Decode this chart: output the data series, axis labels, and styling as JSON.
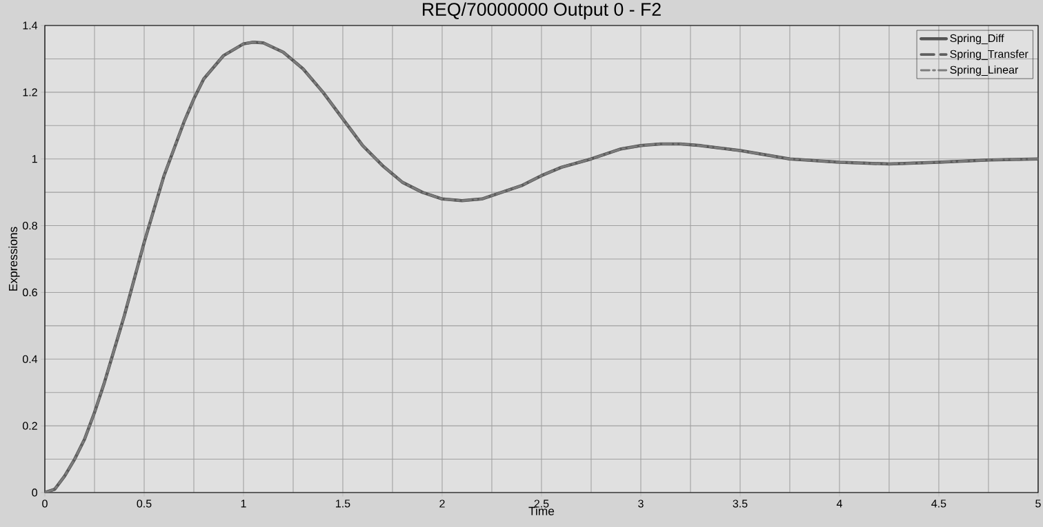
{
  "chart_data": {
    "type": "line",
    "title": "REQ/70000000 Output 0 - F2",
    "xlabel": "Time",
    "ylabel": "Expressions",
    "x": [
      0,
      0.05,
      0.1,
      0.15,
      0.2,
      0.25,
      0.3,
      0.4,
      0.5,
      0.6,
      0.7,
      0.75,
      0.8,
      0.9,
      1.0,
      1.05,
      1.1,
      1.2,
      1.3,
      1.4,
      1.5,
      1.6,
      1.7,
      1.8,
      1.9,
      2.0,
      2.1,
      2.2,
      2.3,
      2.4,
      2.5,
      2.6,
      2.75,
      2.9,
      3.0,
      3.1,
      3.2,
      3.3,
      3.5,
      3.75,
      4.0,
      4.25,
      4.5,
      4.75,
      5.0
    ],
    "series": [
      {
        "name": "Spring_Diff",
        "color": "#555555",
        "line_style": "solid",
        "values": [
          0,
          0.01,
          0.05,
          0.1,
          0.16,
          0.24,
          0.33,
          0.53,
          0.75,
          0.95,
          1.11,
          1.18,
          1.24,
          1.31,
          1.345,
          1.35,
          1.348,
          1.32,
          1.27,
          1.2,
          1.12,
          1.04,
          0.98,
          0.93,
          0.9,
          0.88,
          0.875,
          0.88,
          0.9,
          0.92,
          0.95,
          0.975,
          1.0,
          1.03,
          1.04,
          1.045,
          1.045,
          1.04,
          1.025,
          1.0,
          0.99,
          0.985,
          0.99,
          0.997,
          1.0
        ]
      },
      {
        "name": "Spring_Transfer",
        "color": "#5e5e5e",
        "line_style": "dashed",
        "values": [
          0,
          0.01,
          0.05,
          0.1,
          0.16,
          0.24,
          0.33,
          0.53,
          0.75,
          0.95,
          1.11,
          1.18,
          1.24,
          1.31,
          1.345,
          1.35,
          1.348,
          1.32,
          1.27,
          1.2,
          1.12,
          1.04,
          0.98,
          0.93,
          0.9,
          0.88,
          0.875,
          0.88,
          0.9,
          0.92,
          0.95,
          0.975,
          1.0,
          1.03,
          1.04,
          1.045,
          1.045,
          1.04,
          1.025,
          1.0,
          0.99,
          0.985,
          0.99,
          0.997,
          1.0
        ]
      },
      {
        "name": "Spring_Linear",
        "color": "#7c7c7c",
        "line_style": "dashdot",
        "values": [
          0,
          0.01,
          0.05,
          0.1,
          0.16,
          0.24,
          0.33,
          0.53,
          0.75,
          0.95,
          1.11,
          1.18,
          1.24,
          1.31,
          1.345,
          1.35,
          1.348,
          1.32,
          1.27,
          1.2,
          1.12,
          1.04,
          0.98,
          0.93,
          0.9,
          0.88,
          0.875,
          0.88,
          0.9,
          0.92,
          0.95,
          0.975,
          1.0,
          1.03,
          1.04,
          1.045,
          1.045,
          1.04,
          1.025,
          1.0,
          0.99,
          0.985,
          0.99,
          0.997,
          1.0
        ]
      }
    ],
    "xlim": [
      0,
      5
    ],
    "ylim": [
      0,
      1.4
    ],
    "xticks": [
      0,
      0.5,
      1,
      1.5,
      2,
      2.5,
      3,
      3.5,
      4,
      4.5,
      5
    ],
    "yticks": [
      0,
      0.2,
      0.4,
      0.6,
      0.8,
      1,
      1.2,
      1.4
    ],
    "grid": true,
    "legend": "top right",
    "marker": "none"
  }
}
